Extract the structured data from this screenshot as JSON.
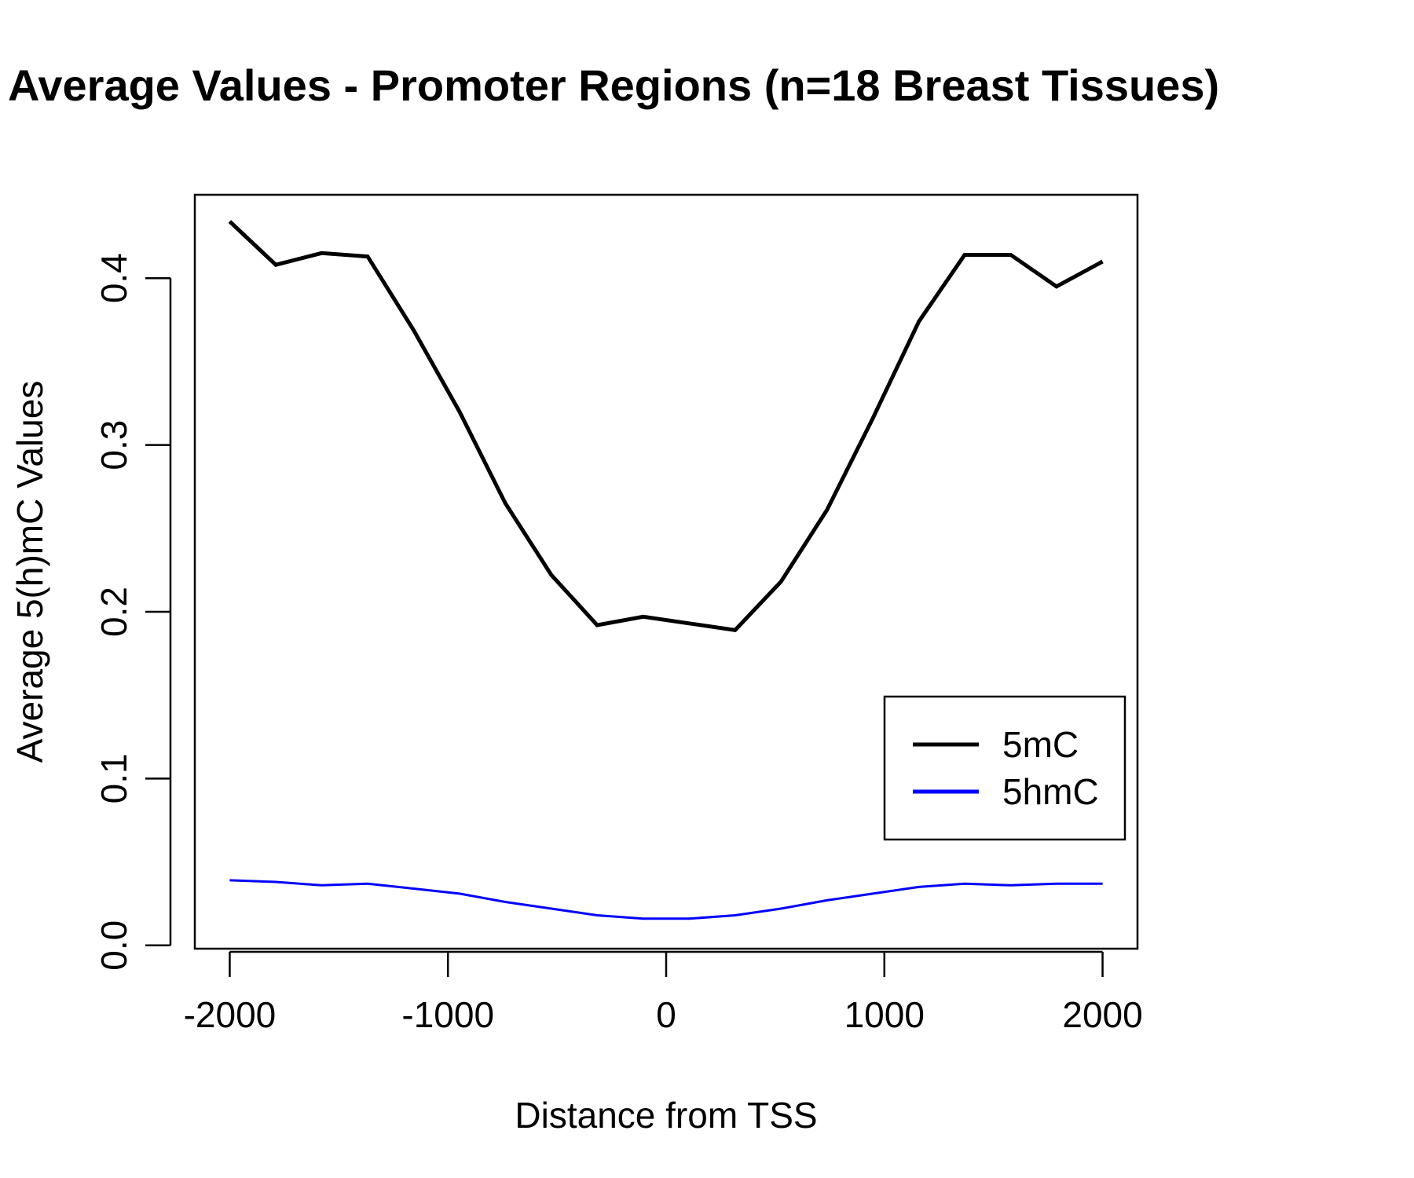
{
  "chart_data": {
    "type": "line",
    "title": "Average Values - Promoter Regions (n=18 Breast Tissues)",
    "xlabel": "Distance from TSS",
    "ylabel": "Average 5(h)mC Values",
    "xlim": [
      -2160,
      2160
    ],
    "ylim": [
      -0.002,
      0.45
    ],
    "x_ticks": [
      -2000,
      -1000,
      0,
      1000,
      2000
    ],
    "x_tick_labels": [
      "-2000",
      "-1000",
      "0",
      "1000",
      "2000"
    ],
    "y_ticks": [
      0.0,
      0.1,
      0.2,
      0.3,
      0.4
    ],
    "y_tick_labels": [
      "0.0",
      "0.1",
      "0.2",
      "0.3",
      "0.4"
    ],
    "grid": false,
    "legend_position": "bottom-right",
    "x": [
      -2000,
      -1789,
      -1579,
      -1368,
      -1158,
      -947,
      -737,
      -526,
      -316,
      -105,
      105,
      316,
      526,
      737,
      947,
      1158,
      1368,
      1579,
      1789,
      2000
    ],
    "series": [
      {
        "name": "5mC",
        "color": "#000000",
        "values": [
          0.434,
          0.408,
          0.415,
          0.413,
          0.369,
          0.32,
          0.265,
          0.222,
          0.192,
          0.197,
          0.193,
          0.189,
          0.218,
          0.261,
          0.316,
          0.374,
          0.414,
          0.414,
          0.395,
          0.41
        ]
      },
      {
        "name": "5hmC",
        "color": "#0000ff",
        "values": [
          0.039,
          0.038,
          0.036,
          0.037,
          0.034,
          0.031,
          0.026,
          0.022,
          0.018,
          0.016,
          0.016,
          0.018,
          0.022,
          0.027,
          0.031,
          0.035,
          0.037,
          0.036,
          0.037,
          0.037
        ]
      }
    ]
  }
}
